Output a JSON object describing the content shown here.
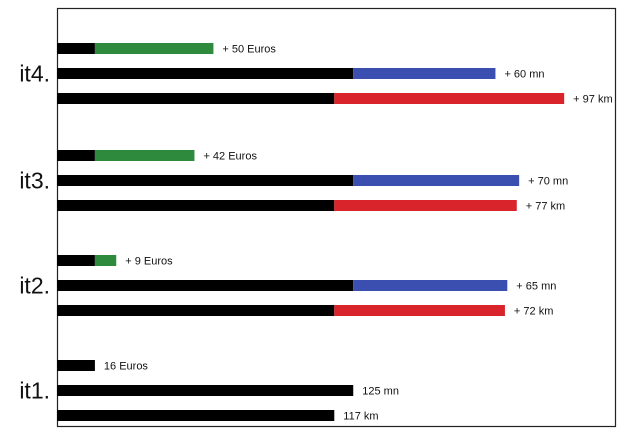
{
  "chart_data": {
    "type": "bar",
    "orientation": "horizontal",
    "stacked": true,
    "title": "",
    "xlabel": "",
    "ylabel": "",
    "grid": false,
    "categories": [
      "it4.",
      "it3.",
      "it2.",
      "it1."
    ],
    "groups": [
      {
        "label": "it4.",
        "bars": [
          {
            "base": 16,
            "increment": 50,
            "label": "+ 50 Euros",
            "color": "#2e8b3e"
          },
          {
            "base": 125,
            "increment": 60,
            "label": "+ 60 mn",
            "color": "#3a4fb0"
          },
          {
            "base": 117,
            "increment": 97,
            "label": "+ 97 km",
            "color": "#d8242a"
          }
        ]
      },
      {
        "label": "it3.",
        "bars": [
          {
            "base": 16,
            "increment": 42,
            "label": "+ 42 Euros",
            "color": "#2e8b3e"
          },
          {
            "base": 125,
            "increment": 70,
            "label": "+ 70 mn",
            "color": "#3a4fb0"
          },
          {
            "base": 117,
            "increment": 77,
            "label": "+ 77 km",
            "color": "#d8242a"
          }
        ]
      },
      {
        "label": "it2.",
        "bars": [
          {
            "base": 16,
            "increment": 9,
            "label": "+ 9 Euros",
            "color": "#2e8b3e"
          },
          {
            "base": 125,
            "increment": 65,
            "label": "+ 65 mn",
            "color": "#3a4fb0"
          },
          {
            "base": 117,
            "increment": 72,
            "label": "+ 72 km",
            "color": "#d8242a"
          }
        ]
      },
      {
        "label": "it1.",
        "bars": [
          {
            "base": 16,
            "increment": 0,
            "label": "16 Euros",
            "color": "#2e8b3e"
          },
          {
            "base": 125,
            "increment": 0,
            "label": "125 mn",
            "color": "#3a4fb0"
          },
          {
            "base": 117,
            "increment": 0,
            "label": "117 km",
            "color": "#d8242a"
          }
        ]
      }
    ],
    "base_color": "#000000"
  }
}
